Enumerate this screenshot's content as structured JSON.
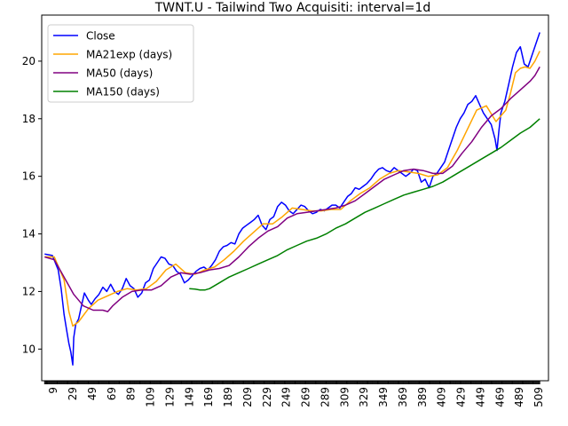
{
  "chart_data": {
    "type": "line",
    "title": "TWNT.U - Tailwind Two Acquisiti: interval=1d",
    "xlabel": "",
    "ylabel": "",
    "xlim": [
      -3,
      519
    ],
    "ylim": [
      8.9,
      21.6
    ],
    "x_ticks": [
      9,
      29,
      49,
      69,
      89,
      109,
      129,
      149,
      169,
      189,
      209,
      229,
      249,
      269,
      289,
      309,
      329,
      349,
      369,
      389,
      409,
      429,
      449,
      469,
      489,
      509
    ],
    "y_ticks": [
      10,
      12,
      14,
      16,
      18,
      20
    ],
    "grid": false,
    "legend_position": "upper left",
    "series": [
      {
        "name": "Close",
        "color": "#0000ff",
        "x": [
          0,
          8,
          14,
          17,
          20,
          23,
          25,
          27,
          29,
          30,
          32,
          35,
          38,
          41,
          45,
          48,
          52,
          56,
          60,
          64,
          68,
          72,
          76,
          80,
          84,
          88,
          92,
          96,
          100,
          104,
          108,
          112,
          116,
          120,
          124,
          128,
          132,
          136,
          140,
          144,
          148,
          152,
          156,
          160,
          164,
          168,
          172,
          176,
          180,
          184,
          188,
          192,
          196,
          200,
          204,
          208,
          212,
          216,
          220,
          224,
          228,
          232,
          236,
          240,
          244,
          248,
          252,
          256,
          260,
          264,
          268,
          272,
          276,
          280,
          284,
          288,
          292,
          296,
          300,
          304,
          308,
          312,
          316,
          320,
          324,
          328,
          332,
          336,
          340,
          344,
          348,
          352,
          356,
          360,
          364,
          368,
          372,
          376,
          380,
          384,
          388,
          392,
          396,
          400,
          404,
          408,
          412,
          416,
          420,
          424,
          428,
          432,
          436,
          440,
          444,
          448,
          452,
          456,
          460,
          464,
          466,
          468,
          470,
          474,
          478,
          482,
          486,
          490,
          494,
          498,
          502,
          506,
          510
        ],
        "y": [
          13.3,
          13.25,
          12.75,
          12.1,
          11.2,
          10.6,
          10.2,
          9.9,
          9.45,
          10.4,
          10.85,
          11.05,
          11.5,
          11.95,
          11.7,
          11.55,
          11.75,
          11.9,
          12.15,
          12.0,
          12.25,
          12.0,
          11.9,
          12.1,
          12.45,
          12.2,
          12.1,
          11.8,
          11.95,
          12.3,
          12.4,
          12.8,
          13.0,
          13.2,
          13.15,
          12.95,
          12.9,
          12.7,
          12.6,
          12.3,
          12.4,
          12.55,
          12.7,
          12.8,
          12.85,
          12.75,
          12.9,
          13.1,
          13.4,
          13.55,
          13.6,
          13.7,
          13.65,
          14.0,
          14.2,
          14.3,
          14.4,
          14.5,
          14.65,
          14.3,
          14.15,
          14.5,
          14.6,
          14.95,
          15.1,
          15.0,
          14.8,
          14.7,
          14.85,
          15.0,
          14.95,
          14.8,
          14.7,
          14.75,
          14.85,
          14.8,
          14.9,
          15.0,
          15.0,
          14.9,
          15.1,
          15.3,
          15.4,
          15.6,
          15.55,
          15.65,
          15.75,
          15.9,
          16.1,
          16.25,
          16.3,
          16.2,
          16.15,
          16.3,
          16.2,
          16.1,
          16.0,
          16.1,
          16.25,
          16.2,
          15.8,
          15.9,
          15.6,
          16.0,
          16.1,
          16.3,
          16.5,
          16.9,
          17.3,
          17.7,
          18.0,
          18.2,
          18.5,
          18.6,
          18.8,
          18.5,
          18.2,
          18.0,
          17.8,
          17.3,
          16.9,
          17.6,
          18.2,
          18.6,
          19.2,
          19.8,
          20.3,
          20.5,
          19.9,
          19.8,
          20.2,
          20.6,
          21.0
        ]
      },
      {
        "name": "MA21exp (days)",
        "color": "#ffa500",
        "x": [
          0,
          10,
          20,
          25,
          29,
          35,
          45,
          55,
          65,
          75,
          85,
          95,
          105,
          115,
          125,
          135,
          145,
          155,
          165,
          175,
          185,
          195,
          205,
          215,
          225,
          235,
          245,
          255,
          265,
          275,
          285,
          295,
          305,
          315,
          325,
          335,
          345,
          355,
          365,
          375,
          385,
          395,
          405,
          415,
          425,
          435,
          445,
          455,
          465,
          475,
          480,
          485,
          490,
          495,
          500,
          505,
          510
        ],
        "y": [
          13.2,
          13.2,
          12.4,
          11.3,
          10.8,
          10.95,
          11.4,
          11.7,
          11.85,
          12.0,
          12.1,
          12.05,
          12.1,
          12.35,
          12.75,
          12.95,
          12.65,
          12.6,
          12.75,
          12.85,
          13.1,
          13.4,
          13.75,
          14.05,
          14.35,
          14.35,
          14.6,
          14.9,
          14.85,
          14.8,
          14.8,
          14.85,
          14.85,
          15.15,
          15.4,
          15.6,
          15.9,
          16.1,
          16.2,
          16.15,
          16.1,
          16.0,
          16.05,
          16.3,
          16.9,
          17.6,
          18.3,
          18.45,
          17.9,
          18.3,
          18.9,
          19.6,
          19.75,
          19.8,
          19.75,
          20.0,
          20.35
        ]
      },
      {
        "name": "MA50 (days)",
        "color": "#800080",
        "x": [
          0,
          10,
          20,
          30,
          40,
          50,
          60,
          65,
          70,
          80,
          90,
          100,
          110,
          120,
          130,
          140,
          150,
          160,
          170,
          180,
          190,
          200,
          210,
          220,
          230,
          240,
          250,
          260,
          270,
          280,
          290,
          300,
          310,
          320,
          330,
          340,
          350,
          360,
          370,
          380,
          390,
          400,
          410,
          420,
          430,
          440,
          450,
          460,
          470,
          480,
          490,
          500,
          505,
          510
        ],
        "y": [
          13.2,
          13.1,
          12.5,
          11.9,
          11.5,
          11.35,
          11.35,
          11.3,
          11.5,
          11.8,
          12.0,
          12.05,
          12.05,
          12.2,
          12.5,
          12.65,
          12.6,
          12.65,
          12.75,
          12.8,
          12.9,
          13.2,
          13.55,
          13.85,
          14.1,
          14.25,
          14.55,
          14.7,
          14.75,
          14.8,
          14.85,
          14.9,
          15.0,
          15.15,
          15.4,
          15.65,
          15.9,
          16.05,
          16.2,
          16.25,
          16.2,
          16.1,
          16.1,
          16.35,
          16.8,
          17.2,
          17.7,
          18.1,
          18.35,
          18.7,
          19.0,
          19.3,
          19.5,
          19.8
        ]
      },
      {
        "name": "MA150 (days)",
        "color": "#008000",
        "x": [
          149,
          155,
          160,
          165,
          170,
          180,
          190,
          200,
          210,
          220,
          230,
          240,
          250,
          260,
          270,
          280,
          290,
          300,
          310,
          320,
          330,
          340,
          350,
          360,
          370,
          380,
          390,
          400,
          410,
          420,
          430,
          440,
          450,
          460,
          470,
          480,
          490,
          500,
          510
        ],
        "y": [
          12.1,
          12.08,
          12.05,
          12.05,
          12.1,
          12.3,
          12.5,
          12.65,
          12.8,
          12.95,
          13.1,
          13.25,
          13.45,
          13.6,
          13.75,
          13.85,
          14.0,
          14.2,
          14.35,
          14.55,
          14.75,
          14.9,
          15.05,
          15.2,
          15.35,
          15.45,
          15.55,
          15.65,
          15.8,
          16.0,
          16.2,
          16.4,
          16.6,
          16.8,
          17.0,
          17.25,
          17.5,
          17.7,
          18.0
        ]
      }
    ]
  }
}
